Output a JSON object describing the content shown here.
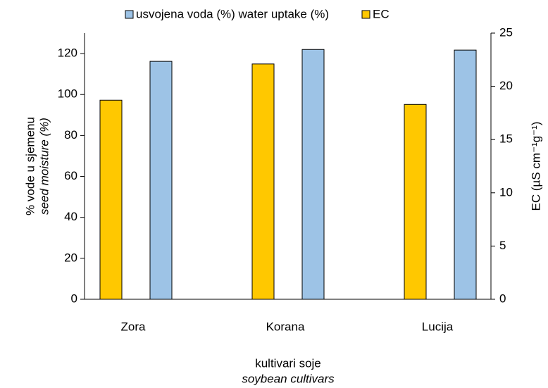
{
  "chart_data": {
    "type": "bar",
    "categories": [
      "Zora",
      "Korana",
      "Lucija"
    ],
    "series": [
      {
        "name": "usvojena voda (%) water uptake (%)",
        "color": "#9dc3e6",
        "values": [
          116.2,
          122,
          121.7
        ]
      },
      {
        "name": "EC",
        "color": "#ffc800",
        "values": [
          18.7,
          22.1,
          18.3
        ],
        "axis": "y2"
      }
    ],
    "ylabel": [
      "% vode u sjemenu",
      "seed moisture (%)"
    ],
    "y2label": "EC (µS cm⁻¹g⁻¹)",
    "xlabel": [
      "kultivari soje",
      "soybean cultivars"
    ],
    "ylim": [
      0,
      130
    ],
    "yticks": [
      0,
      20,
      40,
      60,
      80,
      100,
      120
    ],
    "y2lim": [
      0,
      25
    ],
    "y2ticks": [
      0,
      5,
      10,
      15,
      20,
      25
    ],
    "grid": false
  }
}
